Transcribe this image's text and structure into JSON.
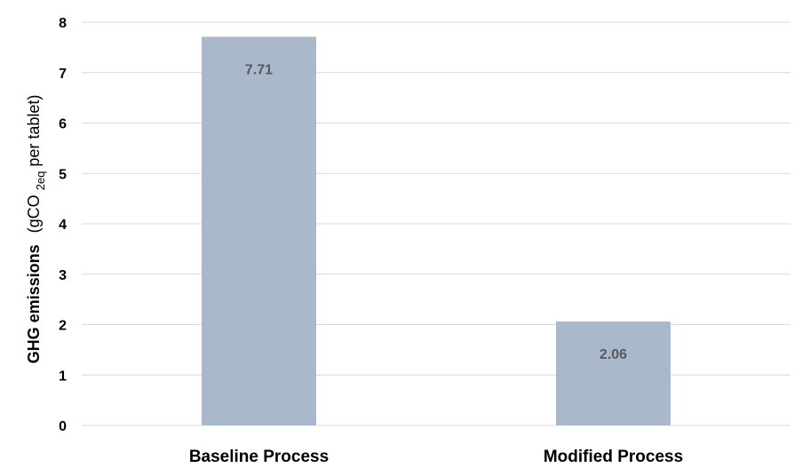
{
  "chart_data": {
    "type": "bar",
    "categories": [
      "Baseline Process",
      "Modified Process"
    ],
    "values": [
      7.71,
      2.06
    ],
    "value_labels": [
      "7.71",
      "2.06"
    ],
    "title": "",
    "xlabel": "",
    "ylabel": {
      "bold_part": "GHG emissions",
      "main": "(gCO",
      "subscript": "2eq",
      "rest": " per  tablet)"
    },
    "ylim": [
      0,
      8
    ],
    "yticks": [
      "0",
      "1",
      "2",
      "3",
      "4",
      "5",
      "6",
      "7",
      "8"
    ],
    "grid": true,
    "legend": "none",
    "colors": {
      "bar": "#a9b8cb",
      "grid": "#d9d9d9",
      "label": "#595959"
    }
  }
}
